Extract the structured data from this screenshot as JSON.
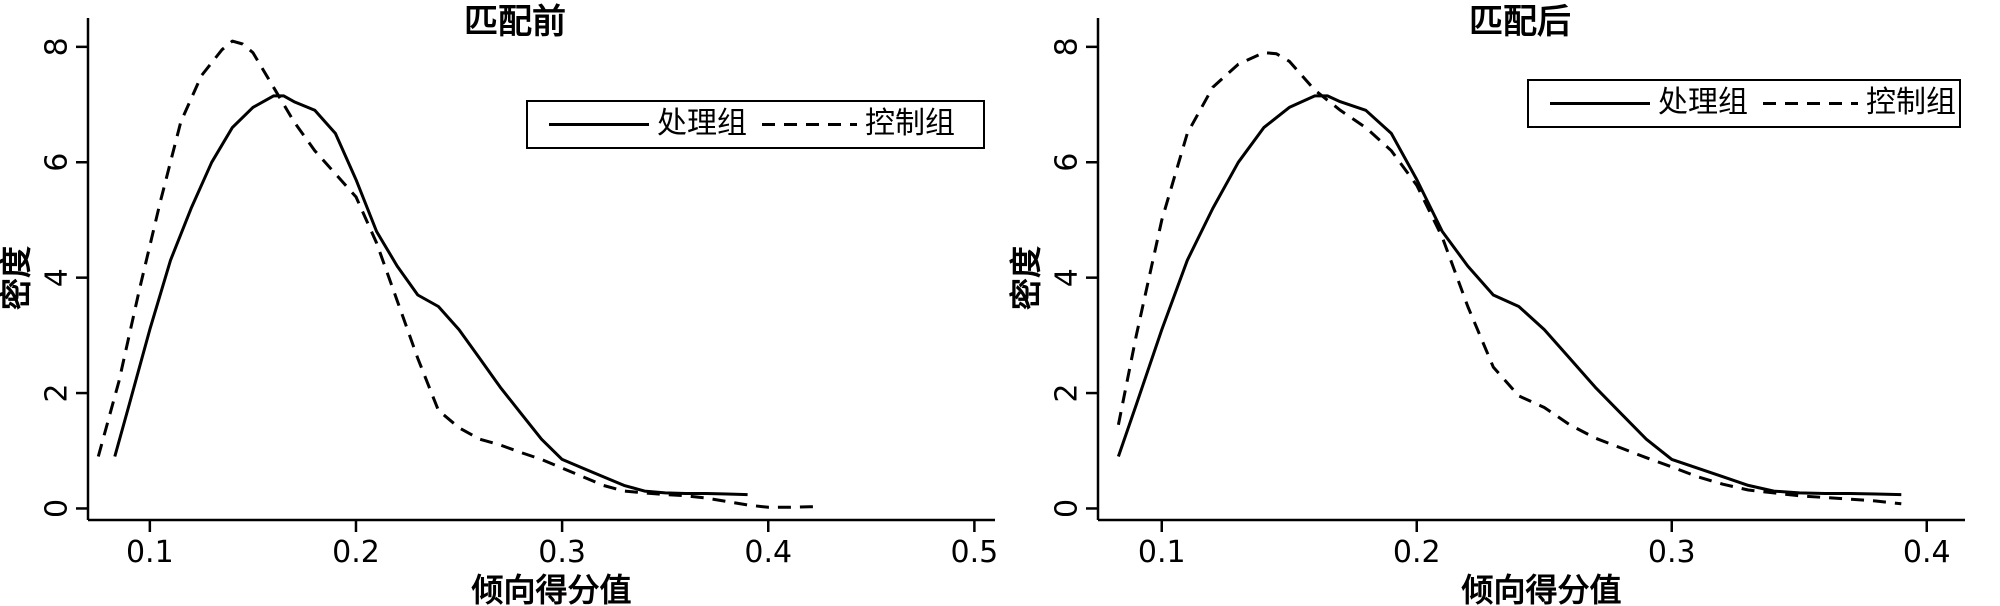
{
  "chart_data": [
    {
      "type": "line",
      "title": "匹配前",
      "xlabel": "倾向得分值",
      "ylabel": "密度",
      "xlim": [
        0.07,
        0.51
      ],
      "ylim": [
        -0.2,
        8.5
      ],
      "xticks": [
        0.1,
        0.2,
        0.3,
        0.4,
        0.5
      ],
      "xtick_labels": [
        "0.1",
        "0.2",
        "0.3",
        "0.4",
        "0.5"
      ],
      "yticks": [
        0,
        2,
        4,
        6,
        8
      ],
      "ytick_labels": [
        "0",
        "2",
        "4",
        "6",
        "8"
      ],
      "grid": false,
      "legend_position": "top-right",
      "series": [
        {
          "name": "处理组",
          "style": "solid",
          "x": [
            0.083,
            0.09,
            0.1,
            0.11,
            0.12,
            0.13,
            0.14,
            0.15,
            0.16,
            0.165,
            0.17,
            0.18,
            0.19,
            0.2,
            0.21,
            0.22,
            0.23,
            0.24,
            0.25,
            0.26,
            0.27,
            0.28,
            0.29,
            0.3,
            0.31,
            0.32,
            0.33,
            0.34,
            0.35,
            0.36,
            0.37,
            0.38,
            0.39
          ],
          "y": [
            0.9,
            1.8,
            3.1,
            4.3,
            5.2,
            6.0,
            6.6,
            6.95,
            7.15,
            7.15,
            7.05,
            6.9,
            6.5,
            5.7,
            4.8,
            4.2,
            3.7,
            3.5,
            3.1,
            2.6,
            2.1,
            1.65,
            1.2,
            0.85,
            0.7,
            0.55,
            0.4,
            0.3,
            0.27,
            0.26,
            0.26,
            0.25,
            0.24
          ]
        },
        {
          "name": "控制组",
          "style": "dashed",
          "x": [
            0.075,
            0.085,
            0.095,
            0.105,
            0.115,
            0.125,
            0.135,
            0.14,
            0.145,
            0.15,
            0.16,
            0.17,
            0.18,
            0.19,
            0.2,
            0.21,
            0.22,
            0.23,
            0.24,
            0.25,
            0.26,
            0.27,
            0.28,
            0.29,
            0.3,
            0.31,
            0.32,
            0.33,
            0.34,
            0.35,
            0.36,
            0.37,
            0.38,
            0.39,
            0.4,
            0.41,
            0.42,
            0.425
          ],
          "y": [
            0.9,
            2.2,
            3.8,
            5.3,
            6.7,
            7.5,
            7.95,
            8.1,
            8.05,
            7.9,
            7.3,
            6.7,
            6.2,
            5.8,
            5.4,
            4.6,
            3.6,
            2.6,
            1.7,
            1.4,
            1.2,
            1.1,
            0.97,
            0.85,
            0.7,
            0.55,
            0.4,
            0.3,
            0.27,
            0.24,
            0.22,
            0.18,
            0.12,
            0.06,
            0.02,
            0.02,
            0.03,
            0.03
          ]
        }
      ]
    },
    {
      "type": "line",
      "title": "匹配后",
      "xlabel": "倾向得分值",
      "ylabel": "密度",
      "xlim": [
        0.075,
        0.415
      ],
      "ylim": [
        -0.2,
        8.5
      ],
      "xticks": [
        0.1,
        0.2,
        0.3,
        0.4
      ],
      "xtick_labels": [
        "0.1",
        "0.2",
        "0.3",
        "0.4"
      ],
      "yticks": [
        0,
        2,
        4,
        6,
        8
      ],
      "ytick_labels": [
        "0",
        "2",
        "4",
        "6",
        "8"
      ],
      "grid": false,
      "legend_position": "top-right",
      "series": [
        {
          "name": "处理组",
          "style": "solid",
          "x": [
            0.083,
            0.09,
            0.1,
            0.11,
            0.12,
            0.13,
            0.14,
            0.15,
            0.16,
            0.165,
            0.17,
            0.18,
            0.19,
            0.2,
            0.21,
            0.22,
            0.23,
            0.24,
            0.25,
            0.26,
            0.27,
            0.28,
            0.29,
            0.3,
            0.31,
            0.32,
            0.33,
            0.34,
            0.35,
            0.36,
            0.37,
            0.38,
            0.39
          ],
          "y": [
            0.9,
            1.8,
            3.1,
            4.3,
            5.2,
            6.0,
            6.6,
            6.95,
            7.15,
            7.15,
            7.05,
            6.9,
            6.5,
            5.7,
            4.8,
            4.2,
            3.7,
            3.5,
            3.1,
            2.6,
            2.1,
            1.65,
            1.2,
            0.85,
            0.7,
            0.55,
            0.4,
            0.3,
            0.27,
            0.26,
            0.26,
            0.25,
            0.24
          ]
        },
        {
          "name": "控制组",
          "style": "dashed",
          "x": [
            0.083,
            0.09,
            0.1,
            0.11,
            0.12,
            0.13,
            0.14,
            0.145,
            0.15,
            0.16,
            0.17,
            0.18,
            0.19,
            0.2,
            0.21,
            0.22,
            0.23,
            0.24,
            0.25,
            0.26,
            0.27,
            0.28,
            0.29,
            0.3,
            0.31,
            0.32,
            0.33,
            0.34,
            0.35,
            0.36,
            0.37,
            0.38,
            0.39
          ],
          "y": [
            1.45,
            3.0,
            5.0,
            6.5,
            7.3,
            7.7,
            7.9,
            7.88,
            7.75,
            7.25,
            6.9,
            6.6,
            6.2,
            5.6,
            4.7,
            3.5,
            2.45,
            1.95,
            1.75,
            1.45,
            1.22,
            1.05,
            0.88,
            0.72,
            0.55,
            0.42,
            0.32,
            0.27,
            0.22,
            0.19,
            0.16,
            0.13,
            0.08
          ]
        }
      ]
    }
  ]
}
